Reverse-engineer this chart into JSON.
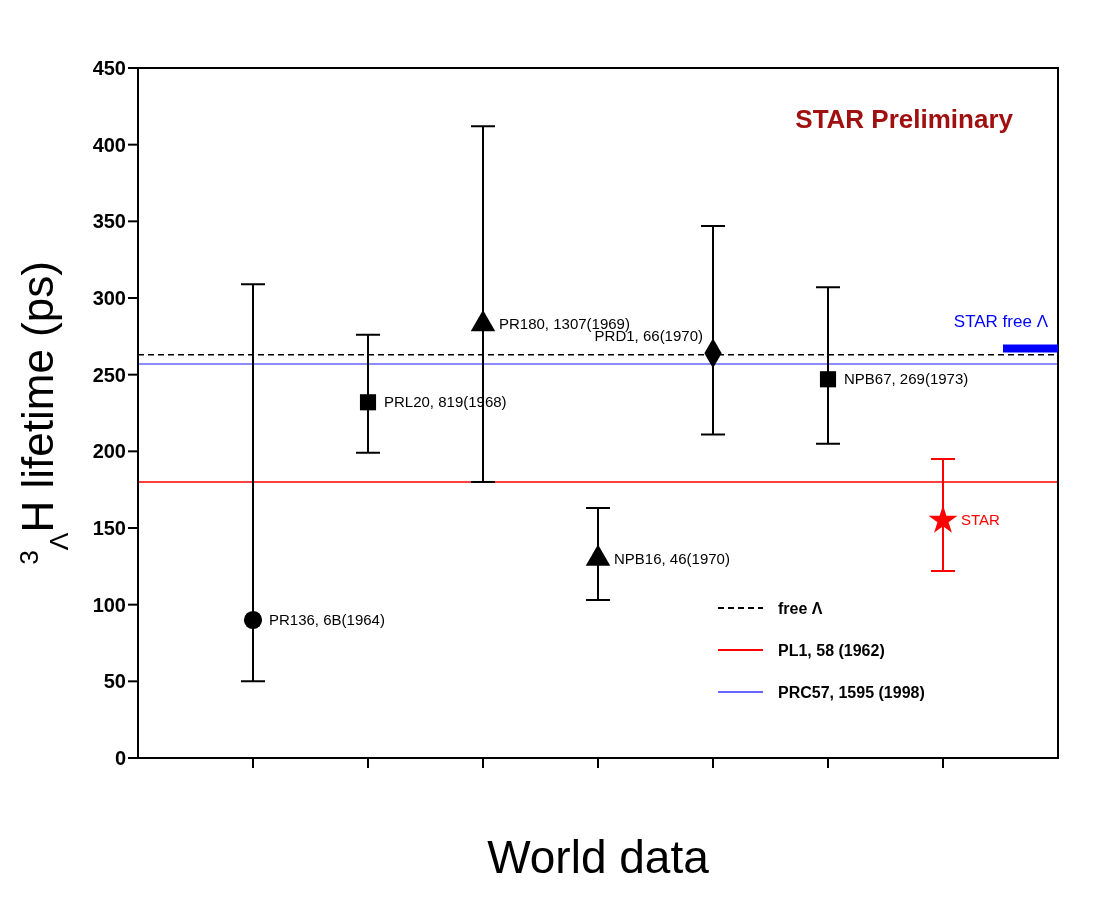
{
  "chart_data": {
    "type": "scatter",
    "xlabel": "World data",
    "ylabel": "$^{3}$$_{Λ}$H lifetime (ps)",
    "annotations": [
      "STAR Preliminary"
    ],
    "categories": [
      null,
      null,
      null,
      null,
      null,
      null,
      null
    ],
    "ylim": [
      0,
      450
    ],
    "yticks": [
      0,
      50,
      100,
      150,
      200,
      250,
      300,
      350,
      400,
      450
    ],
    "legend": "bottom right",
    "series": [
      {
        "name": "PR136, 6B(1964)",
        "color": "#000000",
        "marker": "circle",
        "values": [
          90,
          null,
          null,
          null,
          null,
          null,
          null
        ],
        "errors": [
          [
            50,
            309
          ],
          null,
          null,
          null,
          null,
          null,
          null
        ]
      },
      {
        "name": "PRL20, 819(1968)",
        "color": "#000000",
        "marker": "square",
        "values": [
          null,
          232,
          null,
          null,
          null,
          null,
          null
        ],
        "errors": [
          null,
          [
            199,
            276
          ],
          null,
          null,
          null,
          null,
          null
        ]
      },
      {
        "name": "PR180, 1307(1969)",
        "color": "#000000",
        "marker": "triangle",
        "values": [
          null,
          null,
          283,
          null,
          null,
          null,
          null
        ],
        "errors": [
          null,
          null,
          [
            180,
            412
          ],
          null,
          null,
          null,
          null
        ]
      },
      {
        "name": "NPB16, 46(1970)",
        "color": "#000000",
        "marker": "triangle",
        "values": [
          null,
          null,
          null,
          130,
          null,
          null,
          null
        ],
        "errors": [
          null,
          null,
          null,
          [
            103,
            163
          ],
          null,
          null,
          null
        ]
      },
      {
        "name": "PRD1, 66(1970)",
        "color": "#000000",
        "marker": "diamond",
        "values": [
          null,
          null,
          null,
          null,
          264,
          null,
          null
        ],
        "errors": [
          null,
          null,
          null,
          null,
          [
            211,
            347
          ],
          null,
          null
        ]
      },
      {
        "name": "NPB67, 269(1973)",
        "color": "#000000",
        "marker": "square",
        "values": [
          null,
          null,
          null,
          null,
          null,
          247,
          null
        ],
        "errors": [
          null,
          null,
          null,
          null,
          null,
          [
            205,
            307
          ],
          null
        ]
      },
      {
        "name": "STAR",
        "color": "#ff0000",
        "marker": "star",
        "values": [
          null,
          null,
          null,
          null,
          null,
          null,
          155
        ],
        "errors": [
          null,
          null,
          null,
          null,
          null,
          null,
          [
            122,
            195
          ]
        ]
      }
    ],
    "ref_lines": [
      {
        "axis": "y",
        "value": 263,
        "label": "free Λ",
        "color": "#000000",
        "line_style": "dashed"
      },
      {
        "axis": "y",
        "value": 180,
        "label": "PL1, 58 (1962)",
        "color": "#ff0000",
        "line_style": "solid"
      },
      {
        "axis": "y",
        "value": 257,
        "label": "PRC57, 1595 (1998)",
        "color": "#6666ff",
        "line_style": "solid"
      },
      {
        "axis": "y",
        "value": 267,
        "label": "STAR free Λ",
        "color": "#0000ff",
        "line_style": "solid"
      }
    ]
  }
}
